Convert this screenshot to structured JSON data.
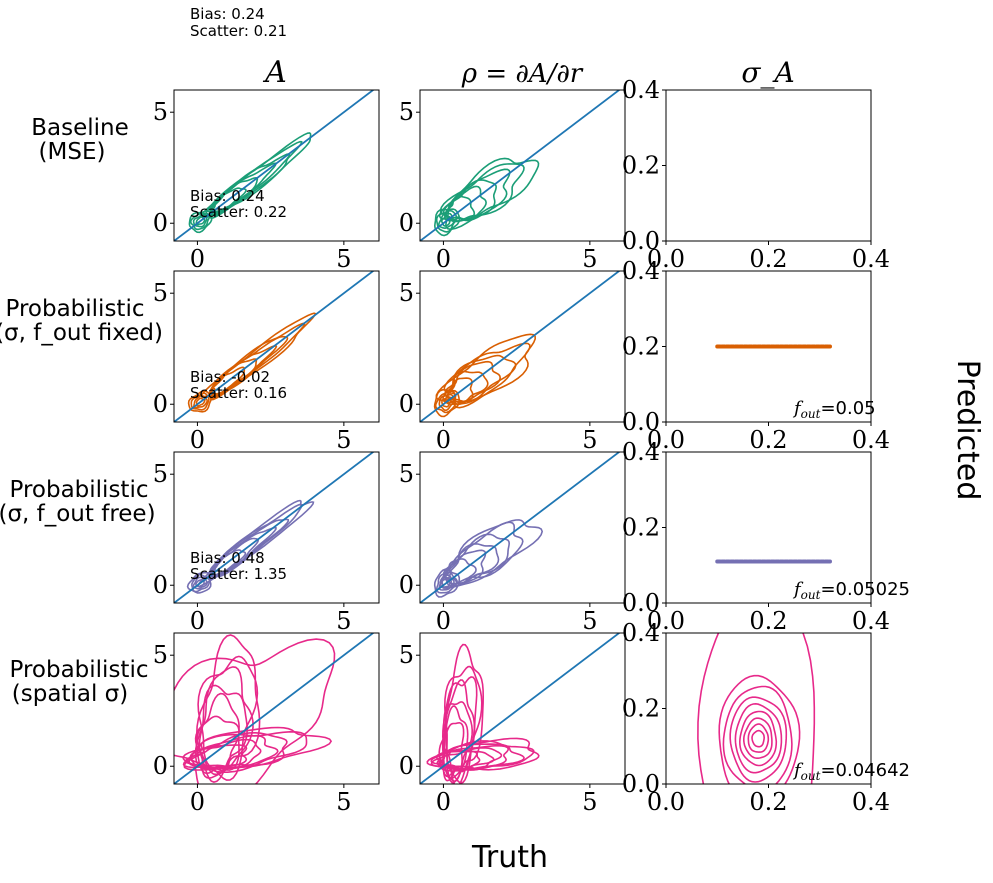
{
  "figure": {
    "top_annotation": {
      "bias": "Bias: 0.24",
      "scatter": "Scatter: 0.21"
    },
    "column_titles": [
      "A",
      "ρ = ∂A/∂r",
      "σ_A"
    ],
    "row_labels": [
      {
        "line1": "Baseline",
        "line2": "(MSE)"
      },
      {
        "line1": "Probabilistic",
        "line2": "(σ, f_out fixed)"
      },
      {
        "line1": "Probabilistic",
        "line2": "(σ, f_out free)"
      },
      {
        "line1": "Probabilistic",
        "line2": "(spatial σ)"
      }
    ],
    "xlabel": "Truth",
    "ylabel": "Predicted"
  },
  "chart_data": [
    {
      "id": "baseline-A",
      "type": "contour",
      "color": "#1b9e77",
      "xlim": [
        -0.8,
        6.2
      ],
      "ylim": [
        -0.8,
        6.0
      ],
      "xticks": [
        0,
        5
      ],
      "yticks": [
        0,
        5
      ],
      "identity_line": true,
      "stats": {
        "bias": "Bias: 0.24",
        "scatter": "Scatter: 0.22"
      }
    },
    {
      "id": "baseline-rho",
      "type": "contour",
      "color": "#1b9e77",
      "xlim": [
        -0.8,
        6.2
      ],
      "ylim": [
        -0.8,
        6.0
      ],
      "xticks": [
        0,
        5
      ],
      "yticks": [
        0,
        5
      ],
      "identity_line": true
    },
    {
      "id": "baseline-sigma",
      "type": "empty",
      "xlim": [
        0,
        0.4
      ],
      "ylim": [
        0,
        0.4
      ],
      "xticks": [
        0.0,
        0.2,
        0.4
      ],
      "yticks": [
        0.0,
        0.2,
        0.4
      ]
    },
    {
      "id": "fixed-A",
      "type": "contour",
      "color": "#d95f02",
      "xlim": [
        -0.8,
        6.2
      ],
      "ylim": [
        -0.8,
        6.0
      ],
      "xticks": [
        0,
        5
      ],
      "yticks": [
        0,
        5
      ],
      "identity_line": true,
      "stats": {
        "bias": "Bias: -0.02",
        "scatter": "Scatter: 0.16"
      }
    },
    {
      "id": "fixed-rho",
      "type": "contour",
      "color": "#d95f02",
      "xlim": [
        -0.8,
        6.2
      ],
      "ylim": [
        -0.8,
        6.0
      ],
      "xticks": [
        0,
        5
      ],
      "yticks": [
        0,
        5
      ],
      "identity_line": true
    },
    {
      "id": "fixed-sigma",
      "type": "band",
      "color": "#d95f02",
      "xlim": [
        0,
        0.4
      ],
      "ylim": [
        0,
        0.4
      ],
      "xticks": [
        0.0,
        0.2,
        0.4
      ],
      "yticks": [
        0.0,
        0.2,
        0.4
      ],
      "band": {
        "x_range": [
          0.1,
          0.32
        ],
        "y": 0.2
      },
      "fout": "=0.05"
    },
    {
      "id": "free-A",
      "type": "contour",
      "color": "#7570b3",
      "xlim": [
        -0.8,
        6.2
      ],
      "ylim": [
        -0.8,
        6.0
      ],
      "xticks": [
        0,
        5
      ],
      "yticks": [
        0,
        5
      ],
      "identity_line": true,
      "stats": {
        "bias": "Bias: 0.48",
        "scatter": "Scatter: 1.35"
      }
    },
    {
      "id": "free-rho",
      "type": "contour",
      "color": "#7570b3",
      "xlim": [
        -0.8,
        6.2
      ],
      "ylim": [
        -0.8,
        6.0
      ],
      "xticks": [
        0,
        5
      ],
      "yticks": [
        0,
        5
      ],
      "identity_line": true
    },
    {
      "id": "free-sigma",
      "type": "band",
      "color": "#7570b3",
      "xlim": [
        0,
        0.4
      ],
      "ylim": [
        0,
        0.4
      ],
      "xticks": [
        0.0,
        0.2,
        0.4
      ],
      "yticks": [
        0.0,
        0.2,
        0.4
      ],
      "band": {
        "x_range": [
          0.1,
          0.32
        ],
        "y": 0.11
      },
      "fout": "=0.05025"
    },
    {
      "id": "spatial-A",
      "type": "contour",
      "color": "#e7298a",
      "xlim": [
        -0.8,
        6.2
      ],
      "ylim": [
        -0.8,
        6.0
      ],
      "xticks": [
        0,
        5
      ],
      "yticks": [
        0,
        5
      ],
      "identity_line": true
    },
    {
      "id": "spatial-rho",
      "type": "contour",
      "color": "#e7298a",
      "xlim": [
        -0.8,
        6.2
      ],
      "ylim": [
        -0.8,
        6.0
      ],
      "xticks": [
        0,
        5
      ],
      "yticks": [
        0,
        5
      ],
      "identity_line": true
    },
    {
      "id": "spatial-sigma",
      "type": "blob",
      "color": "#e7298a",
      "xlim": [
        0,
        0.4
      ],
      "ylim": [
        0,
        0.4
      ],
      "xticks": [
        0.0,
        0.2,
        0.4
      ],
      "yticks": [
        0.0,
        0.2,
        0.4
      ],
      "center": [
        0.18,
        0.12
      ],
      "fout": "=0.04642"
    }
  ]
}
